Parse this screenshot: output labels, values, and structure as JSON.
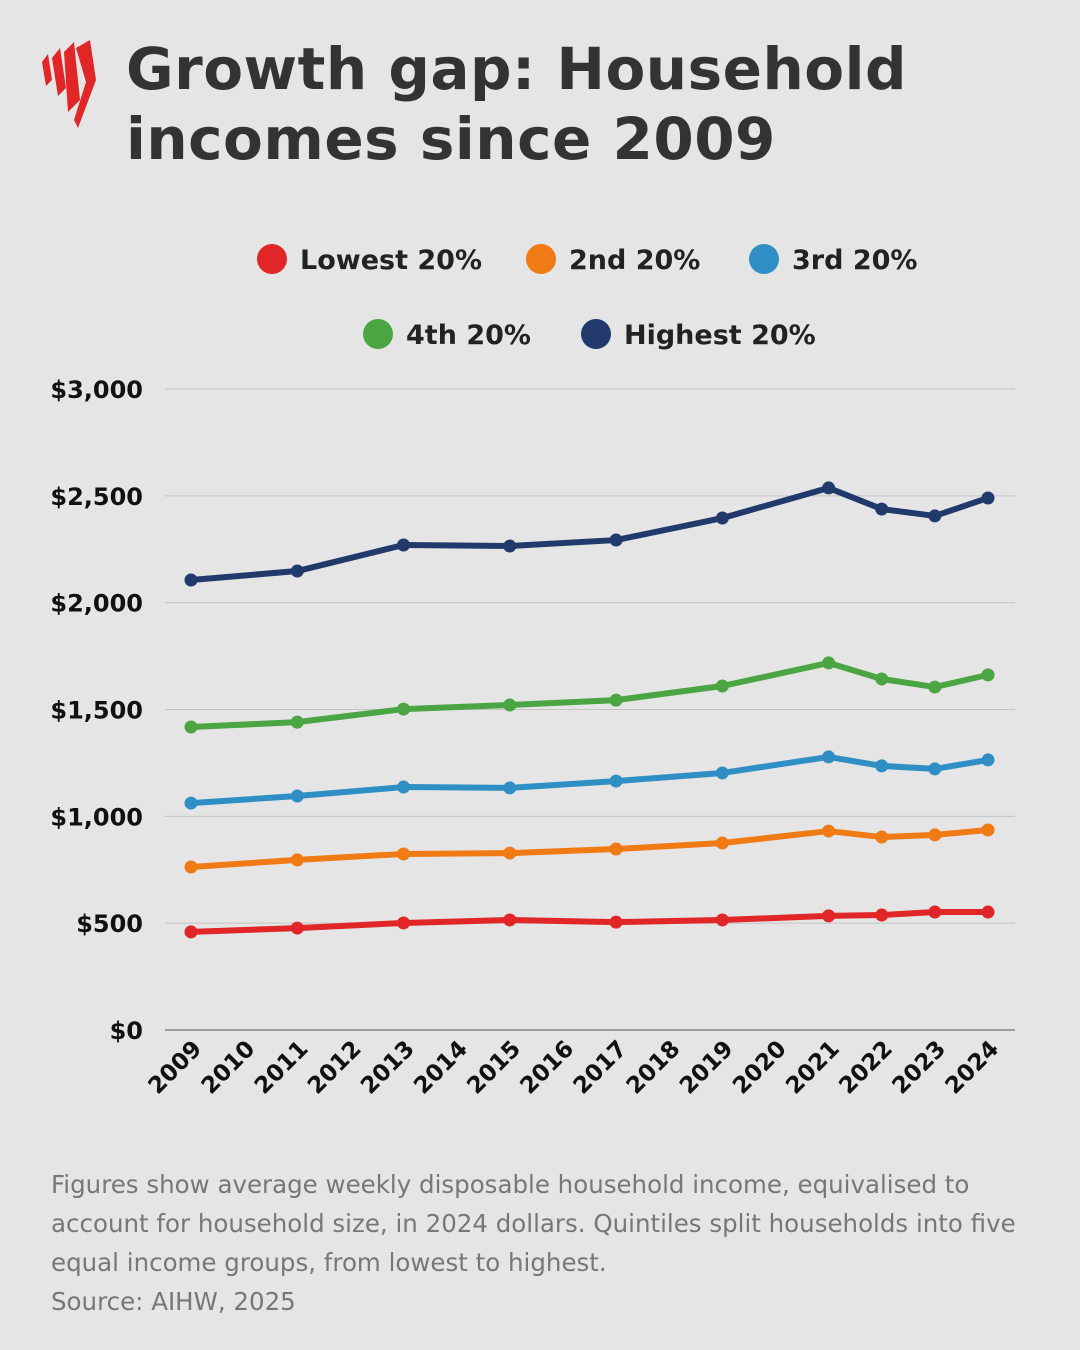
{
  "header": {
    "title": "Growth gap: Household incomes since 2009",
    "logo": "SBS"
  },
  "colors": {
    "background": "#e5e5e5",
    "lowest": "#e02626",
    "second": "#f07a14",
    "third": "#2f8fc4",
    "fourth": "#4aa542",
    "highest": "#223a6b"
  },
  "chart_data": {
    "type": "line",
    "title": "",
    "xlabel": "",
    "ylabel": "",
    "ylim": [
      0,
      3000
    ],
    "yticks": [
      0,
      500,
      1000,
      1500,
      2000,
      2500,
      3000
    ],
    "ytick_labels": [
      "$0",
      "$500",
      "$1,000",
      "$1,500",
      "$2,000",
      "$2,500",
      "$3,000"
    ],
    "xlim": [
      2009,
      2024
    ],
    "xtick_labels": [
      "2009",
      "2010",
      "2011",
      "2012",
      "2013",
      "2014",
      "2015",
      "2016",
      "2017",
      "2018",
      "2019",
      "2020",
      "2021",
      "2022",
      "2023",
      "2024"
    ],
    "grid": "horizontal",
    "legend_position": "top",
    "x": [
      2009,
      2011,
      2013,
      2015,
      2017,
      2019,
      2021,
      2022,
      2023,
      2024
    ],
    "series": [
      {
        "name": "Lowest 20%",
        "color": "#e02626",
        "values": [
          459,
          477,
          501,
          515,
          505,
          515,
          534,
          538,
          552,
          552
        ]
      },
      {
        "name": "2nd 20%",
        "color": "#f07a14",
        "values": [
          763,
          796,
          824,
          828,
          847,
          875,
          931,
          903,
          913,
          936
        ]
      },
      {
        "name": "3rd 20%",
        "color": "#2f8fc4",
        "values": [
          1062,
          1095,
          1137,
          1133,
          1165,
          1203,
          1278,
          1236,
          1222,
          1264
        ]
      },
      {
        "name": "4th 20%",
        "color": "#4aa542",
        "values": [
          1418,
          1441,
          1502,
          1521,
          1544,
          1610,
          1718,
          1643,
          1605,
          1662
        ]
      },
      {
        "name": "Highest 20%",
        "color": "#223a6b",
        "values": [
          2106,
          2148,
          2270,
          2265,
          2293,
          2396,
          2537,
          2438,
          2406,
          2490
        ]
      }
    ]
  },
  "footer": {
    "note": "Figures show average weekly disposable household income, equivalised to account for household size, in 2024 dollars. Quintiles split households into five equal income groups, from lowest to highest.",
    "source": "Source: AIHW, 2025"
  }
}
